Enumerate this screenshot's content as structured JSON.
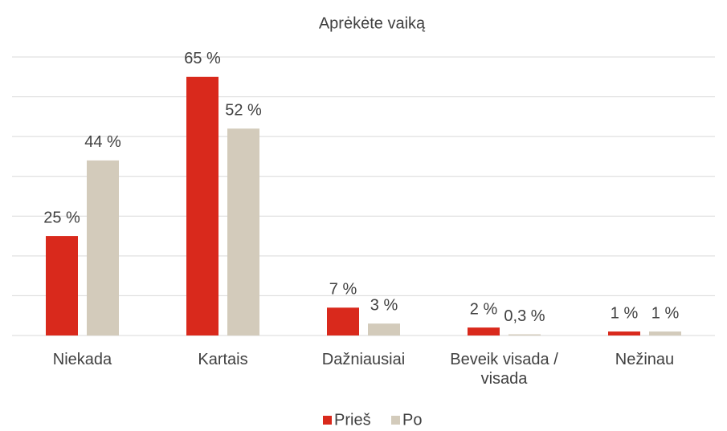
{
  "chart_data": {
    "type": "bar",
    "title": "Aprėkėte vaiką",
    "categories": [
      "Niekada",
      "Kartais",
      "Dažniausiai",
      "Beveik visada / visada",
      "Nežinau"
    ],
    "series": [
      {
        "name": "Prieš",
        "color": "#d9291c",
        "values": [
          25,
          65,
          7,
          2,
          1
        ],
        "value_labels": [
          "25 %",
          "65 %",
          "7 %",
          "2 %",
          "1 %"
        ]
      },
      {
        "name": "Po",
        "color": "#d3cbbb",
        "values": [
          44,
          52,
          3,
          0.3,
          1
        ],
        "value_labels": [
          "44 %",
          "52 %",
          "3 %",
          "0,3 %",
          "1 %"
        ]
      }
    ],
    "ylim": [
      0,
      70
    ],
    "yticks": [
      0,
      10,
      20,
      30,
      40,
      50,
      60,
      70
    ],
    "grid": true,
    "legend": "bottom"
  }
}
